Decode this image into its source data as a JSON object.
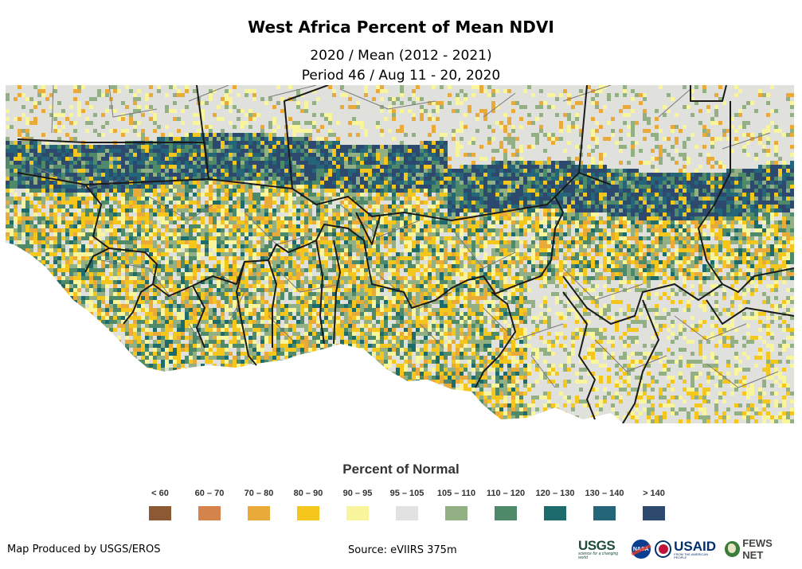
{
  "title": "West Africa Percent of Mean NDVI",
  "subtitle_line1": "2020 / Mean (2012 - 2021)",
  "subtitle_line2": "Period 46 / Aug 11 - 20, 2020",
  "legend": {
    "title": "Percent of Normal",
    "items": [
      {
        "label": "< 60",
        "color": "#8b5a34"
      },
      {
        "label": "60 – 70",
        "color": "#d4844a"
      },
      {
        "label": "70 – 80",
        "color": "#e9aa3a"
      },
      {
        "label": "80 – 90",
        "color": "#f5c61c"
      },
      {
        "label": "90 – 95",
        "color": "#f9f59c"
      },
      {
        "label": "95 – 105",
        "color": "#e2e2e2"
      },
      {
        "label": "105 – 110",
        "color": "#92b084"
      },
      {
        "label": "110 – 120",
        "color": "#4e8a6a"
      },
      {
        "label": "120 – 130",
        "color": "#1e6b6b"
      },
      {
        "label": "130 – 140",
        "color": "#25657a"
      },
      {
        "label": "> 140",
        "color": "#2d4a6e"
      }
    ]
  },
  "footer": {
    "produced_by": "Map Produced by USGS/EROS",
    "source": "Source: eVIIRS 375m"
  },
  "logos": {
    "usgs": "USGS",
    "usgs_tagline": "science for a changing world",
    "nasa": "NASA",
    "usaid": "USAID",
    "usaid_tagline": "FROM THE AMERICAN PEOPLE",
    "fews": "FEWS NET"
  },
  "map": {
    "land_base_color": "#e0e0dc",
    "border_color_country": "#1a1a1a",
    "border_color_admin": "#7a7a7a",
    "water_color": "#ffffff"
  }
}
